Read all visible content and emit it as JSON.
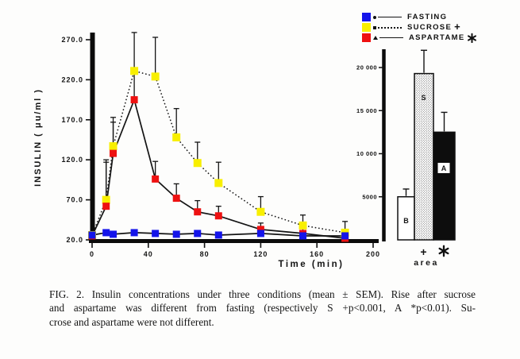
{
  "figure_label": "FIG. 2",
  "caption": {
    "lines": [
      "FIG. 2. Insulin concentrations under three conditions (mean ± SEM). Rise after sucrose",
      "and aspartame was different from fasting (respectively S +p<0.001, A *p<0.01). Su-",
      "crose and aspartame were not different."
    ]
  },
  "legend": {
    "position": "top-right",
    "entries": [
      {
        "label": "FASTING",
        "color": "#1414ea",
        "print_symbol": "circle",
        "line_style": "solid",
        "sign": ""
      },
      {
        "label": "SUCROSE",
        "color": "#f8ef00",
        "print_symbol": "square",
        "line_style": "dotted",
        "sign": "+"
      },
      {
        "label": "ASPARTAME",
        "color": "#ee1111",
        "print_symbol": "triangle",
        "line_style": "solid",
        "sign": "✱"
      }
    ]
  },
  "chart_data": [
    {
      "type": "line",
      "title": "",
      "xlabel": "Time (min)",
      "ylabel": "INSULIN ( μu/ml )",
      "xlim": [
        0,
        205
      ],
      "ylim": [
        20,
        290
      ],
      "x_ticks": [
        0,
        40,
        80,
        120,
        160,
        200
      ],
      "y_ticks": [
        270.0,
        220.0,
        170.0,
        120.0,
        70.0,
        20.0
      ],
      "grid": false,
      "error_bars": "upper SEM whiskers",
      "x": [
        0,
        10,
        15,
        30,
        45,
        60,
        75,
        90,
        120,
        150,
        180
      ],
      "series": [
        {
          "name": "FASTING",
          "color": "#1414ea",
          "line": "solid",
          "values": [
            26,
            29,
            27,
            29,
            28,
            27,
            28,
            26,
            28,
            25,
            25
          ],
          "sem": [
            2,
            3,
            2,
            2,
            2,
            2,
            2,
            2,
            3,
            5,
            4
          ]
        },
        {
          "name": "SUCROSE",
          "color": "#f8ef00",
          "line": "dotted",
          "values": [
            26,
            70,
            137,
            231,
            224,
            148,
            116,
            91,
            55,
            38,
            29
          ],
          "sem": [
            3,
            50,
            30,
            48,
            49,
            36,
            26,
            26,
            19,
            13,
            14
          ]
        },
        {
          "name": "ASPARTAME",
          "color": "#ee1111",
          "line": "solid",
          "values": [
            25,
            62,
            128,
            195,
            96,
            72,
            55,
            50,
            33,
            28,
            22
          ],
          "sem": [
            3,
            55,
            45,
            40,
            22,
            18,
            14,
            12,
            8,
            6,
            5
          ]
        }
      ]
    },
    {
      "type": "bar",
      "title": "",
      "xlabel": "area",
      "categories": [
        "B",
        "S",
        "A"
      ],
      "values": [
        5000,
        19300,
        12500
      ],
      "sem": [
        900,
        2700,
        2300
      ],
      "bar_signs": [
        "",
        "+",
        "✱"
      ],
      "bar_styles": [
        "white",
        "stipple",
        "black"
      ],
      "ylim": [
        0,
        22000
      ],
      "y_ticks": [
        5000,
        10000,
        15000,
        20000
      ],
      "y_tick_labels": [
        "5000",
        "10 000",
        "15 000",
        "20 000"
      ]
    }
  ]
}
